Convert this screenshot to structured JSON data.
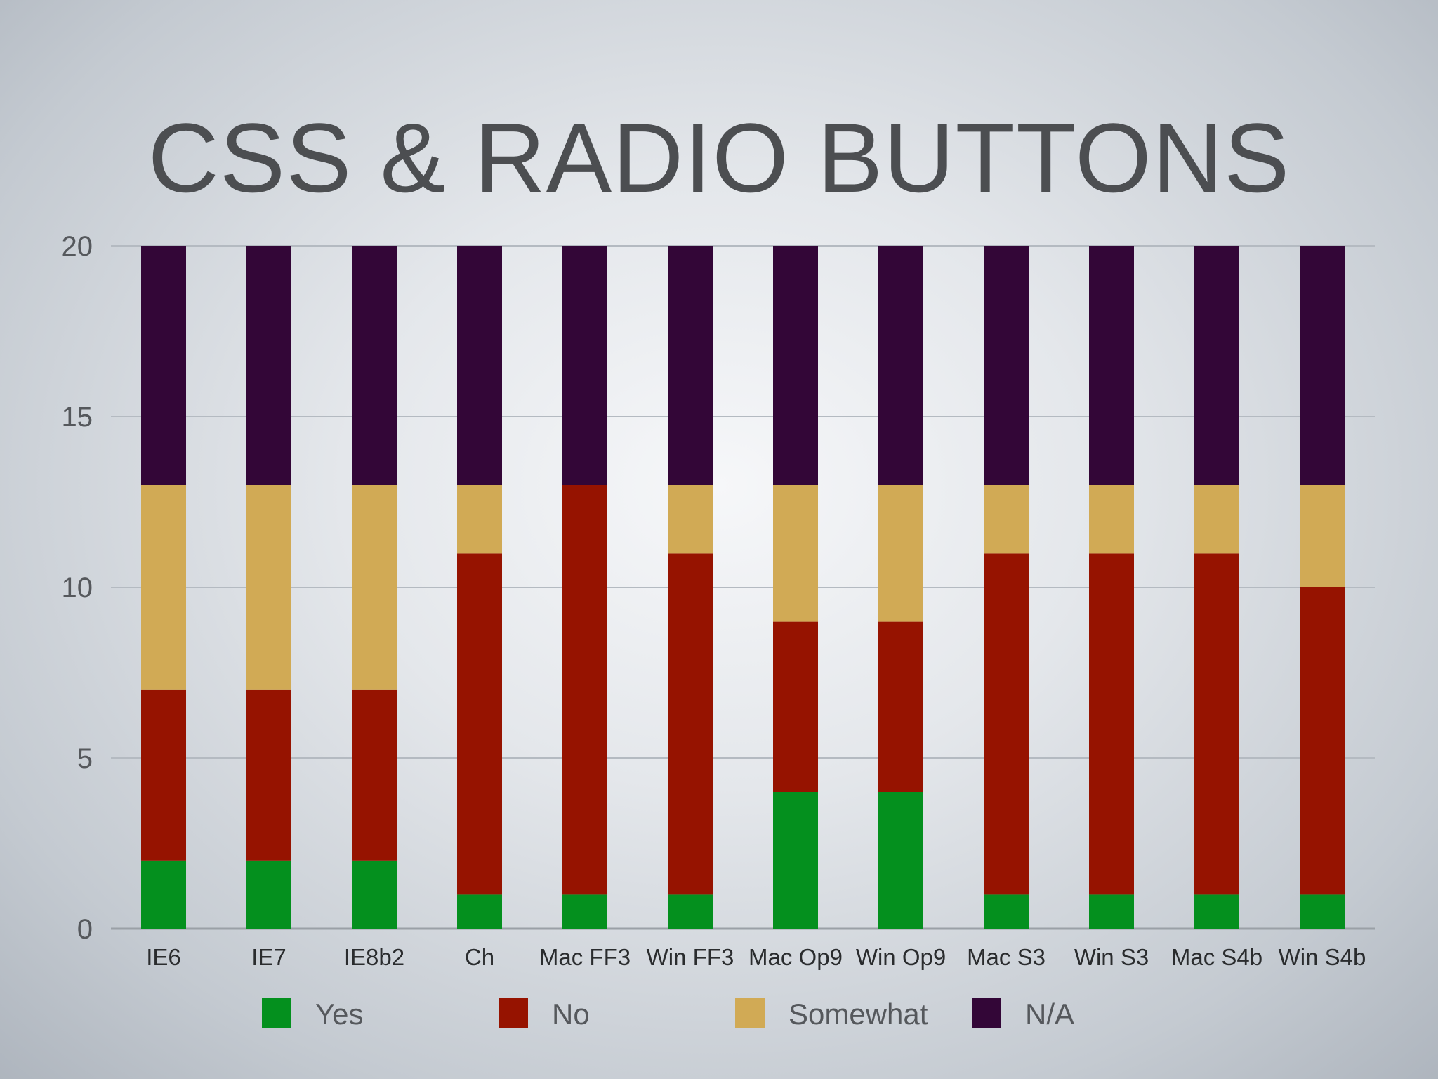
{
  "slide": {
    "title": "CSS & RADIO BUTTONS"
  },
  "chart_data": {
    "type": "bar",
    "stacked": true,
    "title": "CSS & RADIO BUTTONS",
    "xlabel": "",
    "ylabel": "",
    "ylim": [
      0,
      20
    ],
    "yticks": [
      0,
      5,
      10,
      15,
      20
    ],
    "grid": true,
    "legend_position": "bottom",
    "categories": [
      "IE6",
      "IE7",
      "IE8b2",
      "Ch",
      "Mac FF3",
      "Win FF3",
      "Mac Op9",
      "Win Op9",
      "Mac S3",
      "Win S3",
      "Mac S4b",
      "Win S4b"
    ],
    "series": [
      {
        "name": "Yes",
        "color": "#04901e",
        "values": [
          2,
          2,
          2,
          1,
          1,
          1,
          4,
          4,
          1,
          1,
          1,
          1
        ]
      },
      {
        "name": "No",
        "color": "#961300",
        "values": [
          5,
          5,
          5,
          10,
          12,
          10,
          5,
          5,
          10,
          10,
          10,
          9
        ]
      },
      {
        "name": "Somewhat",
        "color": "#d1aa55",
        "values": [
          6,
          6,
          6,
          2,
          0,
          2,
          4,
          4,
          2,
          2,
          2,
          3
        ]
      },
      {
        "name": "N/A",
        "color": "#330637",
        "values": [
          7,
          7,
          7,
          7,
          7,
          7,
          7,
          7,
          7,
          7,
          7,
          7
        ]
      }
    ]
  }
}
